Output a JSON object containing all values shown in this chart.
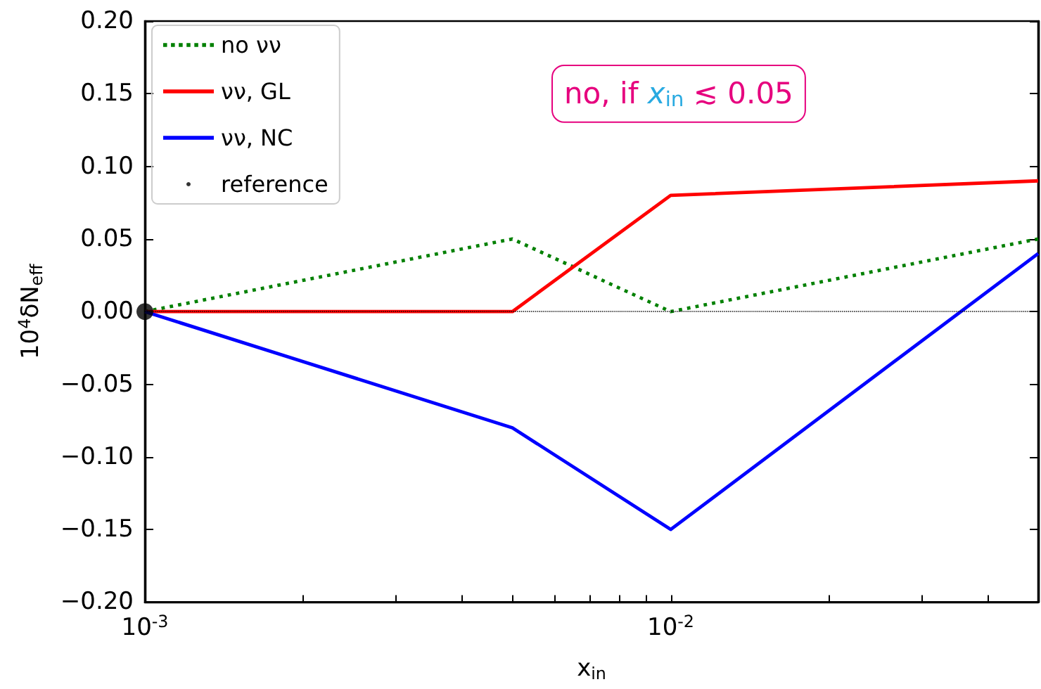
{
  "chart_data": {
    "type": "line",
    "xlabel": "x$_{in}$",
    "ylabel": "10$^{4}$δN$_{eff}$",
    "annotations": [
      "no, if x$_{in}$ ≲ 0.05"
    ],
    "x": [
      0.001,
      0.005,
      0.01,
      0.05
    ],
    "series": [
      {
        "name": "no νν",
        "color": "#008000",
        "line_style": "dotted",
        "values": [
          0,
          0.05,
          0,
          0.05
        ]
      },
      {
        "name": "νν, GL",
        "color": "#ff0000",
        "line_style": "solid",
        "values": [
          0,
          0,
          0.08,
          0.09
        ]
      },
      {
        "name": "νν, NC",
        "color": "#0000ff",
        "line_style": "solid",
        "values": [
          0,
          -0.08,
          -0.15,
          0.04
        ]
      },
      {
        "name": "reference",
        "type": "scatter",
        "marker": "circle",
        "color": "#000000",
        "x": [
          0.001
        ],
        "values": [
          0
        ]
      }
    ],
    "log": "x",
    "xlim": [
      0.001,
      0.05
    ],
    "xticks": [
      {
        "value": 0.001,
        "label": "10$^{-3}$"
      },
      {
        "value": 0.002,
        "label": null
      },
      {
        "value": 0.003,
        "label": null
      },
      {
        "value": 0.004,
        "label": null
      },
      {
        "value": 0.005,
        "label": null
      },
      {
        "value": 0.006,
        "label": null
      },
      {
        "value": 0.007,
        "label": null
      },
      {
        "value": 0.008,
        "label": null
      },
      {
        "value": 0.009,
        "label": null
      },
      {
        "value": 0.01,
        "label": "10$^{-2}$"
      },
      {
        "value": 0.02,
        "label": null
      },
      {
        "value": 0.03,
        "label": null
      },
      {
        "value": 0.04,
        "label": null
      },
      {
        "value": 0.05,
        "label": null
      }
    ],
    "ylim": [
      -0.2,
      0.2
    ],
    "yticks": [
      {
        "value": -0.2,
        "label": "−0.20"
      },
      {
        "value": -0.15,
        "label": "−0.15"
      },
      {
        "value": -0.1,
        "label": "−0.10"
      },
      {
        "value": -0.05,
        "label": "−0.05"
      },
      {
        "value": 0,
        "label": "0.00"
      },
      {
        "value": 0.05,
        "label": "0.05"
      },
      {
        "value": 0.1,
        "label": "0.10"
      },
      {
        "value": 0.15,
        "label": "0.15"
      },
      {
        "value": 0.2,
        "label": "0.20"
      }
    ],
    "ref_lines": [
      {
        "axis": "y",
        "value": 0,
        "color": "#000000",
        "line_style": "dotted"
      }
    ],
    "grid": false,
    "legend": "top left",
    "marker": "none"
  }
}
